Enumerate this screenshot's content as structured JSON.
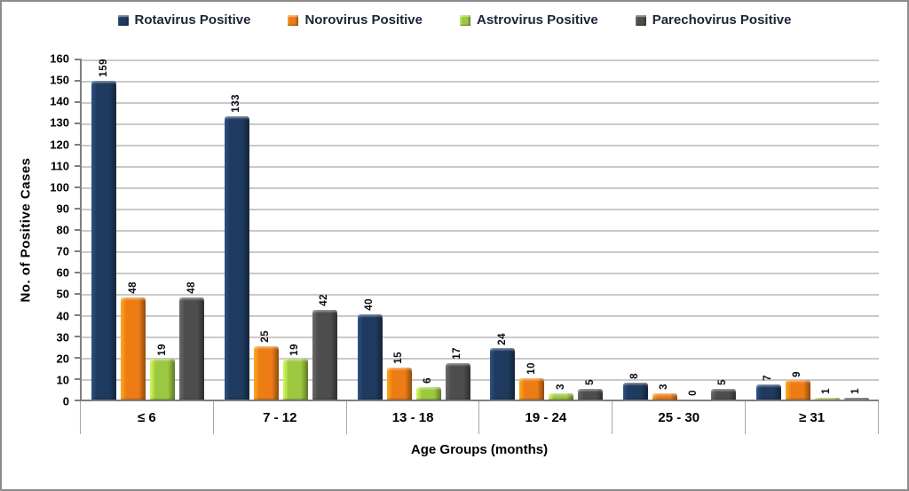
{
  "chart_data": {
    "type": "bar",
    "title": "",
    "categories": [
      "≤ 6",
      "7 - 12",
      "13 - 18",
      "19 - 24",
      "25 - 30",
      "≥ 31"
    ],
    "series": [
      {
        "name": "Rotavirus Positive",
        "color": "#1F3A5F",
        "values": [
          159,
          133,
          40,
          24,
          8,
          7
        ]
      },
      {
        "name": "Norovirus Positive",
        "color": "#ED7C14",
        "values": [
          48,
          25,
          15,
          10,
          3,
          9
        ]
      },
      {
        "name": "Astrovirus Positive",
        "color": "#9CC83F",
        "values": [
          19,
          19,
          6,
          3,
          0,
          1
        ]
      },
      {
        "name": "Parechovirus Positive",
        "color": "#4D4D4D",
        "values": [
          48,
          42,
          17,
          5,
          5,
          1
        ]
      }
    ],
    "xlabel": "Age Groups (months)",
    "ylabel": "No. of Positive Cases",
    "ylim": [
      0,
      160
    ],
    "yticks": [
      0,
      10,
      20,
      30,
      40,
      50,
      60,
      70,
      80,
      90,
      100,
      110,
      120,
      130,
      140,
      150,
      160
    ],
    "grid": "horizontal",
    "legend_position": "top",
    "data_labels": "rotated-vertical",
    "colors": {
      "gridline": "#C9C9C9",
      "axis_line": "#7F7F7F",
      "text": "#000000"
    }
  }
}
